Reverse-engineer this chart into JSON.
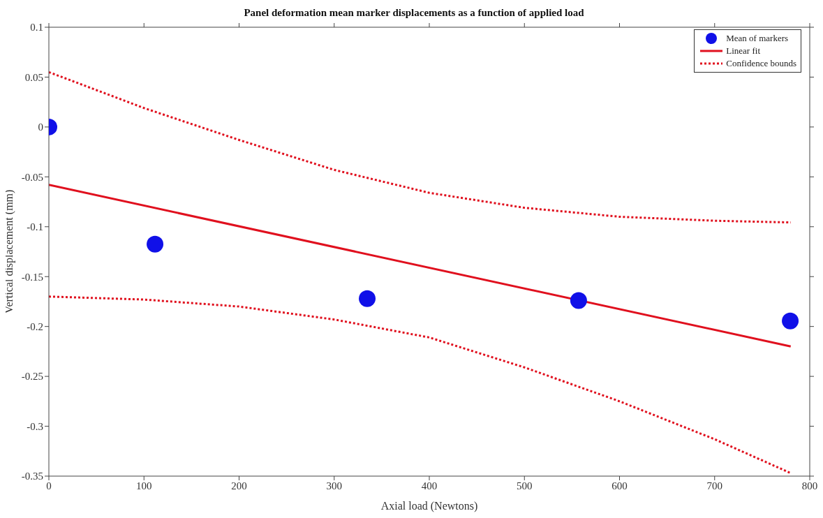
{
  "chart_data": {
    "type": "scatter",
    "title": "Panel deformation mean marker displacements as a function of applied load",
    "xlabel": "Axial load (Newtons)",
    "ylabel": "Vertical displacement (mm)",
    "xlim": [
      0,
      800
    ],
    "xticks": [
      0,
      100,
      200,
      300,
      400,
      500,
      600,
      700,
      800
    ],
    "ylim": [
      -0.35,
      0.1
    ],
    "yticks": [
      -0.35,
      -0.3,
      -0.25,
      -0.2,
      -0.15,
      -0.1,
      -0.05,
      0,
      0.05,
      0.1
    ],
    "grid": false,
    "legend": "top right",
    "series": [
      {
        "name": "Mean of markers",
        "marker": "circle",
        "color": "#1010e8",
        "x": [
          0,
          111.6,
          334.7,
          557,
          779.5
        ],
        "values": [
          0.0,
          -0.1175,
          -0.172,
          -0.174,
          -0.1945
        ]
      },
      {
        "name": "Linear fit",
        "type": "line",
        "marker": "none",
        "line_style": "solid",
        "color": "#e0101e",
        "x": [
          0,
          780
        ],
        "values": [
          -0.058,
          -0.22
        ]
      },
      {
        "name": "Confidence bounds",
        "type": "line",
        "marker": "none",
        "line_style": "dotted",
        "color": "#e0101e",
        "x": [
          0,
          100,
          200,
          300,
          400,
          500,
          600,
          700,
          780
        ],
        "values": [
          0.055,
          0.019,
          -0.013,
          -0.043,
          -0.066,
          -0.081,
          -0.09,
          -0.094,
          -0.0957
        ]
      },
      {
        "type": "line",
        "marker": "none",
        "line_style": "dotted",
        "color": "#e0101e",
        "x": [
          0,
          100,
          200,
          300,
          400,
          500,
          600,
          700,
          780
        ],
        "values": [
          -0.17,
          -0.173,
          -0.18,
          -0.193,
          -0.211,
          -0.241,
          -0.275,
          -0.313,
          -0.347
        ]
      }
    ]
  }
}
